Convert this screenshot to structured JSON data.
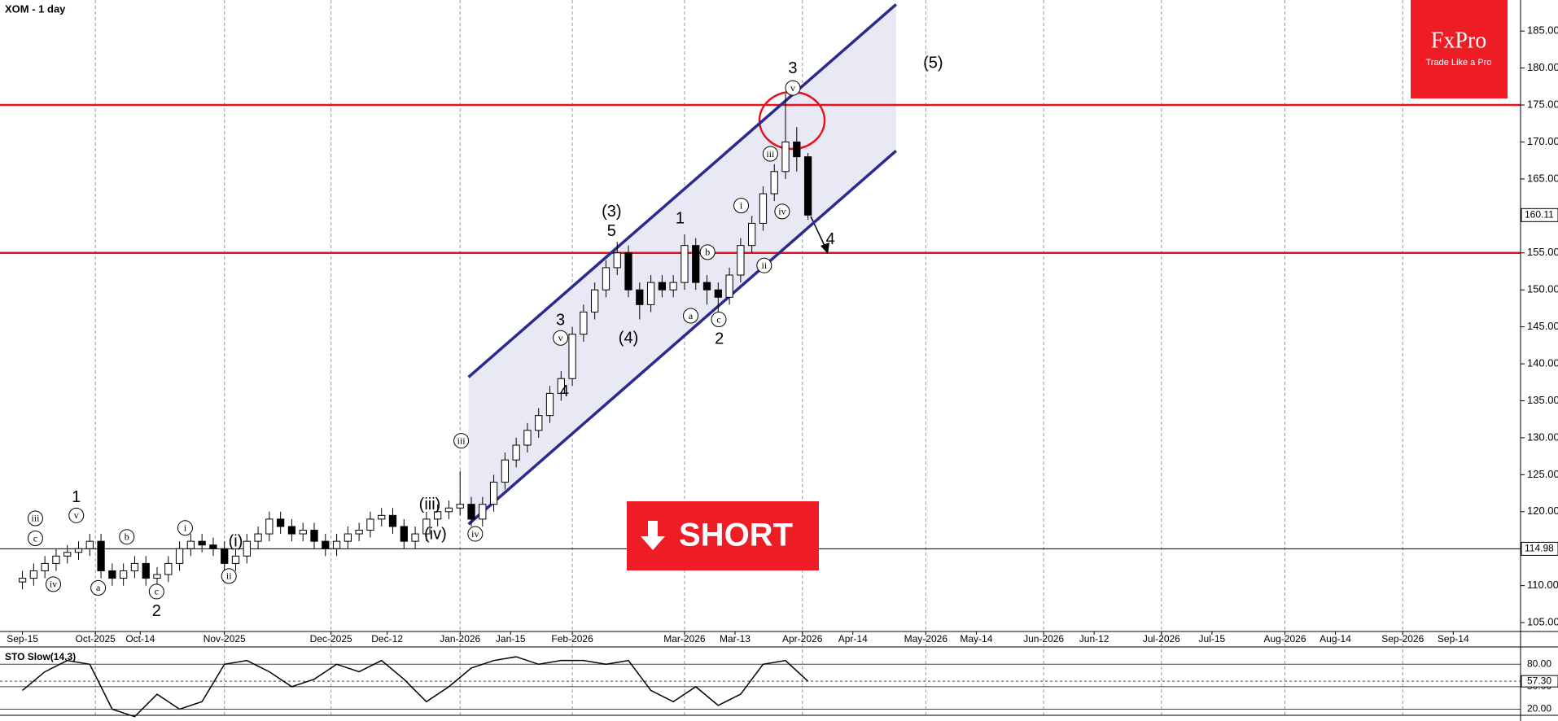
{
  "chart_data": [
    {
      "type": "candlestick",
      "title": "XOM - 1 day",
      "x": [
        0,
        2,
        4,
        6,
        8,
        10,
        12,
        14,
        16,
        18,
        20,
        22,
        24,
        26,
        28,
        30,
        32,
        34,
        36,
        38,
        40,
        42,
        44,
        46,
        48,
        50,
        52,
        54,
        56,
        58,
        60,
        62,
        64,
        66,
        68,
        70,
        72,
        74,
        76,
        78,
        80,
        82,
        84,
        86,
        88,
        90,
        92,
        94,
        96,
        98,
        100,
        102,
        104,
        106,
        108,
        110,
        112,
        114,
        116,
        118,
        120,
        122,
        124,
        126,
        128,
        130,
        132,
        134,
        136,
        138,
        140
      ],
      "open": [
        110.5,
        111,
        112,
        113,
        114,
        114.5,
        115,
        116,
        112,
        111,
        112,
        113,
        111,
        111.5,
        113,
        115,
        116,
        115.5,
        115,
        113,
        114,
        116,
        117,
        119,
        118,
        117,
        117.5,
        116,
        115,
        116,
        117,
        117.5,
        119,
        119.5,
        118,
        116,
        117,
        119,
        120,
        120.5,
        121,
        119,
        121,
        124,
        127,
        129,
        131,
        133,
        136,
        138,
        144,
        147,
        150,
        153,
        155,
        150,
        148,
        151,
        150,
        151,
        156,
        151,
        150,
        149,
        152,
        156,
        159,
        163,
        166,
        170,
        168
      ],
      "high": [
        112,
        113,
        114,
        115,
        115.5,
        116,
        117,
        117,
        113,
        113,
        114,
        114,
        112.5,
        114,
        116,
        117,
        117,
        116.5,
        116,
        115,
        117,
        118,
        120,
        120,
        119,
        118.5,
        118.5,
        117,
        117,
        118,
        118.5,
        120,
        120.5,
        120.5,
        119,
        118,
        120,
        121,
        121.5,
        125.5,
        122,
        122,
        125,
        128,
        130,
        132,
        134,
        137,
        139,
        145,
        148,
        151,
        154,
        156.5,
        156,
        151,
        152,
        152,
        152,
        157.5,
        157,
        152,
        151,
        153,
        157,
        160,
        164,
        167,
        176.5,
        172,
        168.5
      ],
      "low": [
        109.5,
        110,
        111,
        112,
        113,
        113.5,
        114,
        111,
        110,
        110,
        111,
        110,
        110,
        110.5,
        112,
        114,
        114.5,
        114,
        112,
        112,
        113,
        115,
        116,
        117,
        116,
        116,
        115,
        114,
        114,
        115,
        116,
        116.5,
        118,
        117,
        115,
        115,
        116,
        118,
        119,
        119.5,
        118,
        118,
        120,
        123,
        126,
        128,
        130,
        132,
        135,
        137,
        143,
        146,
        149,
        152,
        149,
        146,
        147,
        149,
        149,
        150,
        150,
        148,
        147,
        148,
        151,
        155,
        158,
        162,
        165,
        166,
        159.5
      ],
      "close": [
        111,
        112,
        113,
        114,
        114.5,
        115,
        116,
        112,
        111,
        112,
        113,
        111,
        111.5,
        113,
        115,
        116,
        115.5,
        115,
        113,
        114,
        116,
        117,
        119,
        118,
        117,
        117.5,
        116,
        115,
        116,
        117,
        117.5,
        119,
        119.5,
        118,
        116,
        117,
        119,
        120,
        120.5,
        121,
        119,
        121,
        124,
        127,
        129,
        131,
        133,
        136,
        138,
        144,
        147,
        150,
        153,
        155,
        150,
        148,
        151,
        150,
        151,
        156,
        151,
        150,
        149,
        152,
        156,
        159,
        163,
        166,
        170,
        168,
        160.11
      ],
      "xlim": [
        -4,
        267
      ],
      "ylim": [
        103.8,
        189.2
      ],
      "xticks": [
        {
          "value": 0,
          "label": "Sep-15"
        },
        {
          "value": 13,
          "label": "Oct-2025"
        },
        {
          "value": 21,
          "label": "Oct-14"
        },
        {
          "value": 36,
          "label": "Nov-2025"
        },
        {
          "value": 55,
          "label": "Dec-2025"
        },
        {
          "value": 65,
          "label": "Dec-12"
        },
        {
          "value": 78,
          "label": "Jan-2026"
        },
        {
          "value": 87,
          "label": "Jan-15"
        },
        {
          "value": 98,
          "label": "Feb-2026"
        },
        {
          "value": 118,
          "label": "Mar-2026"
        },
        {
          "value": 127,
          "label": "Mar-13"
        },
        {
          "value": 139,
          "label": "Apr-2026"
        },
        {
          "value": 148,
          "label": "Apr-14"
        },
        {
          "value": 161,
          "label": "May-2026"
        },
        {
          "value": 170,
          "label": "May-14"
        },
        {
          "value": 182,
          "label": "Jun-2026"
        },
        {
          "value": 191,
          "label": "Jun-12"
        },
        {
          "value": 203,
          "label": "Jul-2026"
        },
        {
          "value": 212,
          "label": "Jul-15"
        },
        {
          "value": 225,
          "label": "Aug-2026"
        },
        {
          "value": 234,
          "label": "Aug-14"
        },
        {
          "value": 246,
          "label": "Sep-2026"
        },
        {
          "value": 255,
          "label": "Sep-14"
        }
      ],
      "yticks": [
        {
          "value": 105,
          "label": "105.00"
        },
        {
          "value": 110,
          "label": "110.00"
        },
        {
          "value": 115,
          "label": "115.00"
        },
        {
          "value": 120,
          "label": "120.00"
        },
        {
          "value": 125,
          "label": "125.00"
        },
        {
          "value": 130,
          "label": "130.00"
        },
        {
          "value": 135,
          "label": "135.00"
        },
        {
          "value": 140,
          "label": "140.00"
        },
        {
          "value": 145,
          "label": "145.00"
        },
        {
          "value": 150,
          "label": "150.00"
        },
        {
          "value": 155,
          "label": "155.00"
        },
        {
          "value": 160,
          "label": "160.00"
        },
        {
          "value": 165,
          "label": "165.00"
        },
        {
          "value": 170,
          "label": "170.00"
        },
        {
          "value": 175,
          "label": "175.00"
        },
        {
          "value": 180,
          "label": "180.00"
        },
        {
          "value": 185,
          "label": "185.00"
        }
      ],
      "hlines": [
        {
          "value": 175,
          "color": "#e8101c"
        },
        {
          "value": 155,
          "color": "#e8101c"
        },
        {
          "value": 114.98,
          "label": "114.98",
          "color": "#000000"
        }
      ],
      "last_price": {
        "value": 160.11,
        "label": "160.11"
      },
      "channel": {
        "upper": {
          "x": [
            79.5,
            155.7
          ],
          "y": [
            138.2,
            188.6
          ]
        },
        "lower": {
          "x": [
            79.5,
            155.7
          ],
          "y": [
            118.3,
            168.8
          ]
        },
        "color": "#2b2b8f",
        "fill": "#e9e9f5"
      },
      "annotations": [
        {
          "text": "1",
          "x": 9.6,
          "y": 122.0
        },
        {
          "text": "2",
          "x": 23.9,
          "y": 106.6
        },
        {
          "text": "(3)",
          "x": 105,
          "y": 160.6
        },
        {
          "text": "5",
          "x": 105,
          "y": 158.0
        },
        {
          "text": "3",
          "x": 95.9,
          "y": 145.9
        },
        {
          "text": "4",
          "x": 96.6,
          "y": 136.3
        },
        {
          "text": "(4)",
          "x": 108,
          "y": 143.5
        },
        {
          "text": "1",
          "x": 117.2,
          "y": 159.7
        },
        {
          "text": "2",
          "x": 124.2,
          "y": 143.4
        },
        {
          "text": "3",
          "x": 137.3,
          "y": 180.0
        },
        {
          "text": "4",
          "x": 144,
          "y": 156.9
        },
        {
          "text": "(5)",
          "x": 162.3,
          "y": 180.7
        },
        {
          "text": "iii",
          "x": 78.2,
          "y": 129.6,
          "circle": true
        },
        {
          "text": "iv",
          "x": 80.7,
          "y": 117.0,
          "circle": true
        },
        {
          "text": "v",
          "x": 95.9,
          "y": 143.5,
          "circle": true
        },
        {
          "text": "a",
          "x": 119.1,
          "y": 146.5,
          "circle": true
        },
        {
          "text": "b",
          "x": 122.1,
          "y": 155.1,
          "circle": true
        },
        {
          "text": "c",
          "x": 124.1,
          "y": 146.0,
          "circle": true
        },
        {
          "text": "i",
          "x": 128.1,
          "y": 161.4,
          "circle": true
        },
        {
          "text": "ii",
          "x": 132.2,
          "y": 153.3,
          "circle": true
        },
        {
          "text": "iii",
          "x": 133.3,
          "y": 168.4,
          "circle": true
        },
        {
          "text": "iv",
          "x": 135.4,
          "y": 160.6,
          "circle": true
        },
        {
          "text": "v",
          "x": 137.3,
          "y": 177.3,
          "circle": true
        },
        {
          "text": "v",
          "x": 9.6,
          "y": 119.5,
          "circle": true
        },
        {
          "text": "iii",
          "x": 2.3,
          "y": 119.1,
          "circle": true
        },
        {
          "text": "c",
          "x": 2.3,
          "y": 116.4,
          "circle": true
        },
        {
          "text": "iv",
          "x": 5.5,
          "y": 110.2,
          "circle": true
        },
        {
          "text": "a",
          "x": 13.5,
          "y": 109.7,
          "circle": true
        },
        {
          "text": "b",
          "x": 18.6,
          "y": 116.6,
          "circle": true
        },
        {
          "text": "c",
          "x": 23.9,
          "y": 109.2,
          "circle": true
        },
        {
          "text": "i",
          "x": 29,
          "y": 117.8,
          "circle": true
        },
        {
          "text": "ii",
          "x": 36.8,
          "y": 111.3,
          "circle": true
        },
        {
          "text": "(i)",
          "x": 38,
          "y": 116
        },
        {
          "text": "(iii)",
          "x": 72.6,
          "y": 121
        },
        {
          "text": "(iv)",
          "x": 73.6,
          "y": 117
        }
      ]
    },
    {
      "type": "line",
      "title": "STO Slow(14,3)",
      "x": [
        0,
        4,
        8,
        12,
        16,
        20,
        24,
        28,
        32,
        36,
        40,
        44,
        48,
        52,
        56,
        60,
        64,
        68,
        72,
        76,
        80,
        84,
        88,
        92,
        96,
        100,
        104,
        108,
        112,
        116,
        120,
        124,
        128,
        132,
        136,
        140
      ],
      "values": [
        45,
        70,
        85,
        80,
        20,
        10,
        40,
        20,
        30,
        80,
        85,
        70,
        50,
        60,
        80,
        70,
        85,
        60,
        30,
        50,
        75,
        85,
        90,
        80,
        85,
        85,
        80,
        85,
        45,
        30,
        50,
        25,
        40,
        80,
        85,
        57.3
      ],
      "color": "#000000",
      "xlim": [
        -4,
        267
      ],
      "ylim": [
        11.8,
        97.7
      ],
      "yticks": [
        {
          "value": 80,
          "label": "80.00"
        },
        {
          "value": 50,
          "label": "50.00"
        },
        {
          "value": 20,
          "label": "20.00"
        }
      ],
      "last_label": {
        "value": 57.3,
        "label": "57.30"
      }
    }
  ],
  "logo": {
    "name": "FxPro",
    "tagline": "Trade Like a Pro"
  },
  "signal": "SHORT"
}
